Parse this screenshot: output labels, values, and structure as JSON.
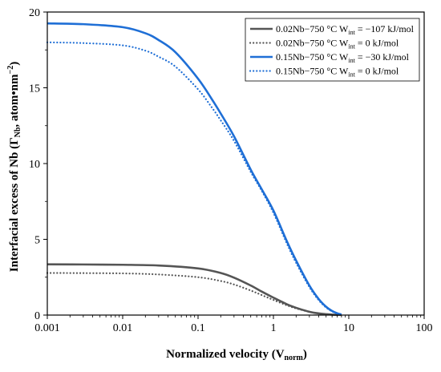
{
  "chart_data": {
    "type": "line",
    "title": "",
    "xlabel": "Normalized velocity (V",
    "xlabel_sub": "norm",
    "xlabel_end": ")",
    "ylabel": "Interfacial excess of Nb (Γ",
    "ylabel_sub": "Nb",
    "ylabel_mid": ", atom•nm",
    "ylabel_sup": "−2",
    "ylabel_end": ")",
    "xscale": "log",
    "xlim": [
      0.001,
      100
    ],
    "ylim": [
      0,
      20
    ],
    "xticks": [
      0.001,
      0.01,
      0.1,
      1,
      10,
      100
    ],
    "xtick_labels": [
      "0.001",
      "0.01",
      "0.1",
      "1",
      "10",
      "100"
    ],
    "yticks": [
      0,
      5,
      10,
      15,
      20
    ],
    "ytick_labels": [
      "0",
      "5",
      "10",
      "15",
      "20"
    ],
    "grid": false,
    "legend_position": "top-right",
    "series": [
      {
        "name": "0.02Nb−750 °C W",
        "name_sub": "int",
        "name_end": " = −107 kJ/mol",
        "color": "#555555",
        "style": "solid",
        "x": [
          0.001,
          0.003,
          0.01,
          0.03,
          0.1,
          0.2,
          0.3,
          0.5,
          0.7,
          1,
          1.5,
          2,
          3,
          4,
          5,
          6,
          8
        ],
        "y": [
          3.35,
          3.34,
          3.32,
          3.27,
          3.08,
          2.78,
          2.47,
          1.95,
          1.55,
          1.15,
          0.72,
          0.48,
          0.22,
          0.11,
          0.06,
          0.03,
          0.01
        ]
      },
      {
        "name": "0.02Nb−750 °C W",
        "name_sub": "int",
        "name_end": " = 0 kJ/mol",
        "color": "#555555",
        "style": "dotted",
        "x": [
          0.001,
          0.003,
          0.01,
          0.03,
          0.1,
          0.2,
          0.3,
          0.5,
          0.7,
          1,
          1.5,
          2,
          3,
          4,
          5,
          6,
          8
        ],
        "y": [
          2.78,
          2.77,
          2.75,
          2.68,
          2.5,
          2.25,
          2.02,
          1.62,
          1.32,
          1.0,
          0.65,
          0.44,
          0.21,
          0.1,
          0.05,
          0.02,
          0.01
        ]
      },
      {
        "name": "0.15Nb−750 °C W",
        "name_sub": "int",
        "name_end": " = −30 kJ/mol",
        "color": "#1f6fd6",
        "style": "solid",
        "x": [
          0.001,
          0.003,
          0.01,
          0.02,
          0.03,
          0.05,
          0.1,
          0.15,
          0.2,
          0.3,
          0.5,
          0.7,
          1,
          1.5,
          2,
          3,
          4,
          5,
          6,
          7,
          8
        ],
        "y": [
          19.25,
          19.2,
          19.0,
          18.6,
          18.15,
          17.35,
          15.6,
          14.3,
          13.3,
          11.8,
          9.6,
          8.3,
          6.9,
          4.9,
          3.6,
          1.95,
          1.05,
          0.55,
          0.27,
          0.12,
          0.04
        ]
      },
      {
        "name": "0.15Nb−750 °C W",
        "name_sub": "int",
        "name_end": " = 0 kJ/mol",
        "color": "#1f6fd6",
        "style": "dotted",
        "x": [
          0.001,
          0.003,
          0.01,
          0.02,
          0.03,
          0.05,
          0.1,
          0.15,
          0.2,
          0.3,
          0.5,
          0.7,
          1,
          1.5,
          2,
          3,
          4,
          5,
          6,
          7,
          8
        ],
        "y": [
          18.0,
          17.95,
          17.8,
          17.45,
          17.05,
          16.4,
          14.9,
          13.75,
          12.85,
          11.5,
          9.45,
          8.2,
          6.75,
          4.75,
          3.45,
          1.85,
          0.98,
          0.5,
          0.24,
          0.1,
          0.03
        ]
      }
    ]
  }
}
